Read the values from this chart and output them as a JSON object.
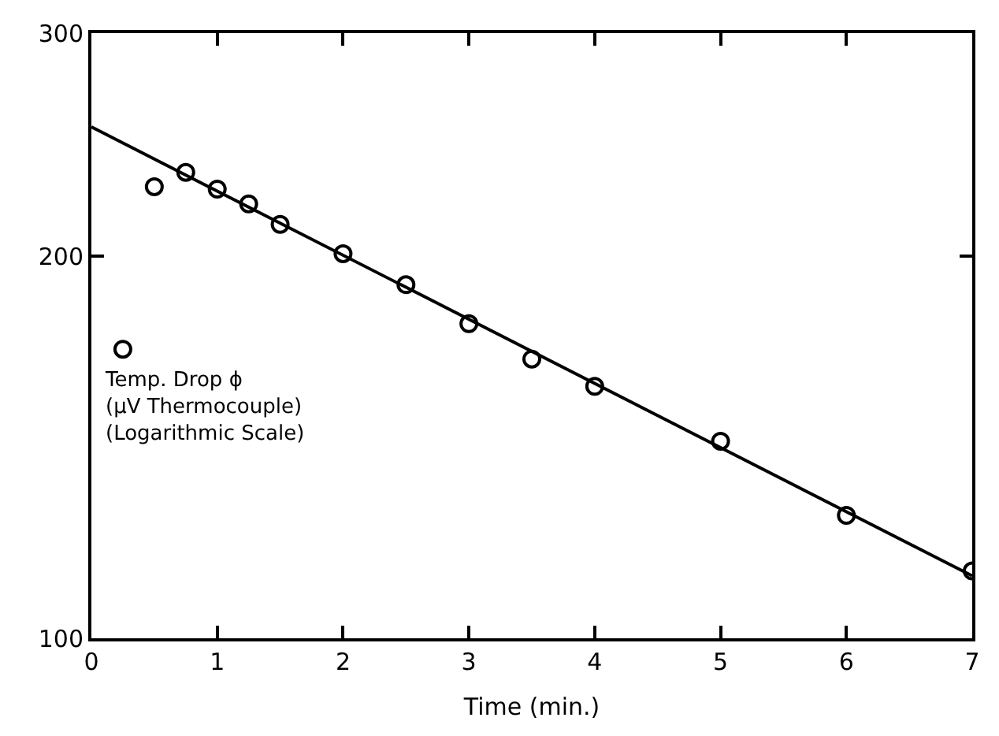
{
  "chart_data": {
    "type": "scatter",
    "xlabel": "Time (min.)",
    "annotations": [
      "Temp. Drop ϕ\n(μV Thermocouple)\n(Logarithmic Scale)"
    ],
    "x": [
      0.25,
      0.5,
      0.75,
      1.0,
      1.25,
      1.5,
      2,
      2.5,
      3,
      3.5,
      4,
      5,
      6,
      7
    ],
    "series": [
      {
        "color": "#000000",
        "marker": "circle",
        "values": [
          169,
          227,
          233,
          226,
          220,
          212,
          201,
          190,
          177,
          166,
          158,
          143,
          125,
          113
        ]
      },
      {
        "type": "line",
        "color": "#000000",
        "marker": "none",
        "x": [
          0,
          7
        ],
        "values": [
          253,
          112
        ]
      }
    ],
    "xlim": [
      0,
      7
    ],
    "xticks": [
      0,
      1,
      2,
      3,
      4,
      5,
      6,
      7
    ],
    "ylim": [
      100,
      300
    ],
    "yticks": [
      100,
      200,
      300
    ],
    "log": "y"
  }
}
